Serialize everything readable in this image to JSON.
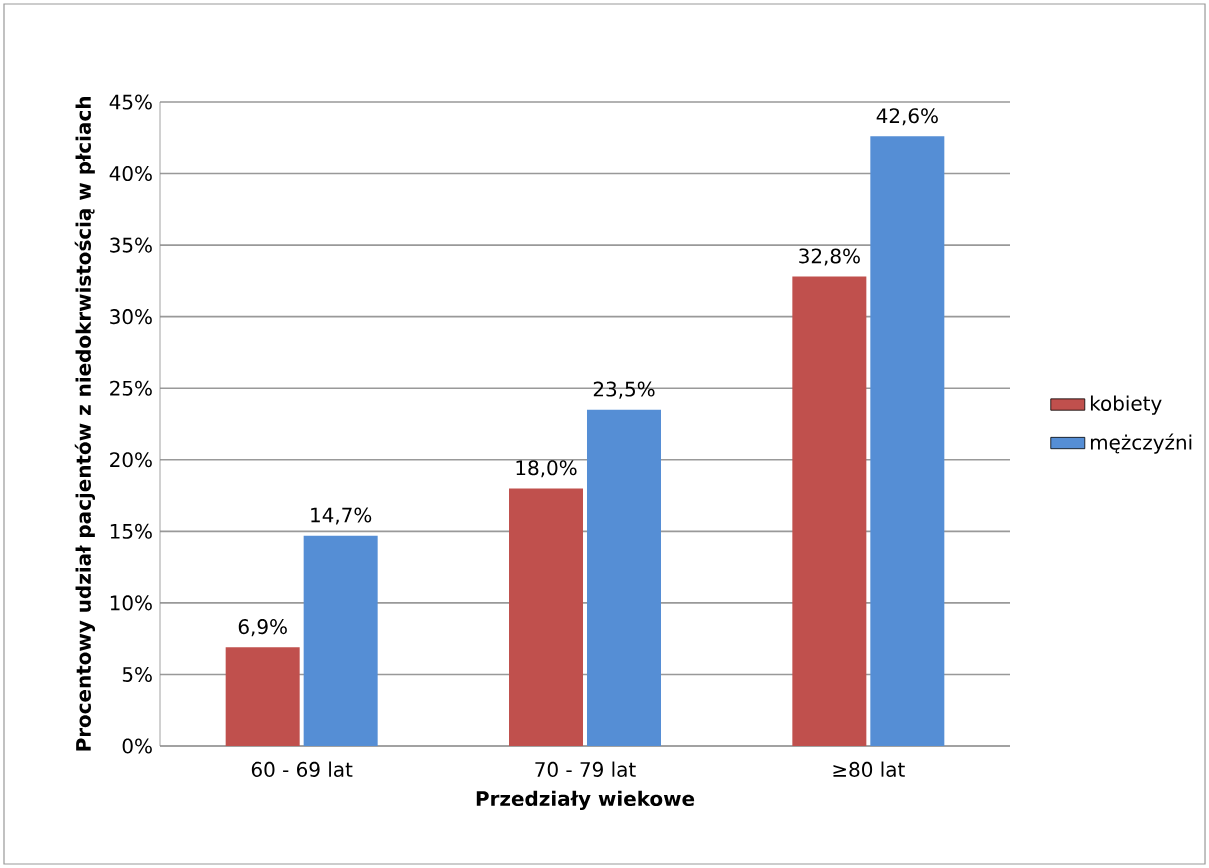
{
  "chart_data": {
    "type": "bar",
    "xlabel": "Przedziały wiekowe",
    "ylabel": "Procentowy udział pacjentów z niedokrwistością w płciach",
    "categories": [
      "60 - 69 lat",
      "70 - 79 lat",
      "≥80 lat"
    ],
    "series": [
      {
        "name": "kobiety",
        "color": "#c0504d",
        "values": [
          6.9,
          18.0,
          32.8
        ],
        "value_labels": [
          "6,9%",
          "18,0%",
          "32,8%"
        ]
      },
      {
        "name": "mężczyźni",
        "color": "#558ed5",
        "values": [
          14.7,
          23.5,
          42.6
        ],
        "value_labels": [
          "14,7%",
          "23,5%",
          "42,6%"
        ]
      }
    ],
    "ylim": [
      0,
      45
    ],
    "yticks": [
      {
        "value": 0,
        "label": "0%"
      },
      {
        "value": 5,
        "label": "5%"
      },
      {
        "value": 10,
        "label": "10%"
      },
      {
        "value": 15,
        "label": "15%"
      },
      {
        "value": 20,
        "label": "20%"
      },
      {
        "value": 25,
        "label": "25%"
      },
      {
        "value": 30,
        "label": "30%"
      },
      {
        "value": 35,
        "label": "35%"
      },
      {
        "value": 40,
        "label": "40%"
      },
      {
        "value": 45,
        "label": "45%"
      }
    ],
    "grid": "y",
    "legend": "right"
  }
}
